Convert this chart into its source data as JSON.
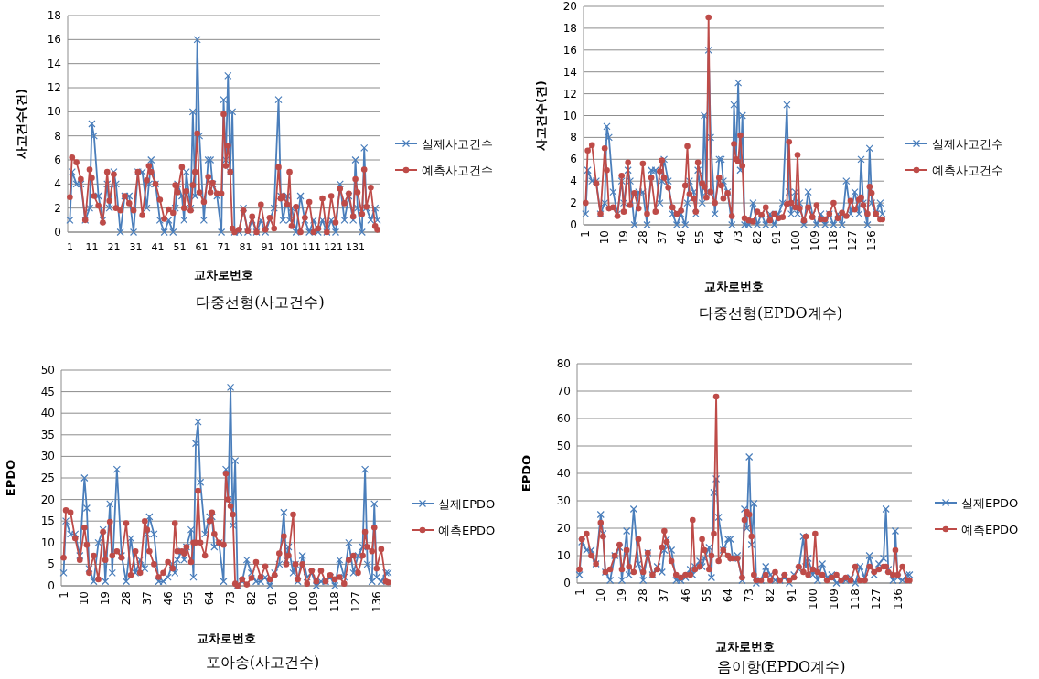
{
  "chart_data": [
    {
      "type": "line",
      "xlabel": "교차로번호",
      "ylabel": "사고건수(건)",
      "annotations": [
        "다중선형(사고건수)"
      ],
      "grid": "y",
      "legend": "right",
      "x": [
        1,
        2,
        4,
        6,
        8,
        10,
        11,
        12,
        14,
        16,
        18,
        19,
        21,
        22,
        24,
        26,
        28,
        30,
        32,
        34,
        36,
        37,
        38,
        40,
        42,
        44,
        46,
        48,
        49,
        50,
        52,
        53,
        54,
        56,
        57,
        58,
        59,
        60,
        62,
        64,
        65,
        66,
        68,
        70,
        71,
        72,
        73,
        74,
        75,
        76,
        78,
        80,
        82,
        84,
        86,
        88,
        90,
        92,
        94,
        96,
        97,
        98,
        100,
        101,
        102,
        104,
        106,
        108,
        110,
        112,
        114,
        116,
        118,
        120,
        122,
        124,
        126,
        128,
        130,
        131,
        132,
        134,
        135,
        136,
        138,
        140,
        141
      ],
      "xlim": [
        0,
        142
      ],
      "xticks": [
        1,
        11,
        21,
        31,
        41,
        51,
        61,
        71,
        81,
        91,
        101,
        111,
        121,
        131
      ],
      "ylim": [
        0,
        18
      ],
      "yticks": [
        0,
        2,
        4,
        6,
        8,
        10,
        12,
        14,
        16,
        18
      ],
      "series": [
        {
          "name": "실제사고건수",
          "color": "#4a7ebb",
          "marker": "cross",
          "values": [
            1,
            5,
            4,
            4,
            1,
            2,
            9,
            8,
            3,
            1,
            4,
            2,
            5,
            4,
            0,
            3,
            3,
            0,
            5,
            5,
            2,
            4,
            6,
            4,
            1,
            0,
            1,
            0,
            2,
            4,
            3,
            1,
            5,
            2,
            10,
            3,
            16,
            8,
            1,
            6,
            6,
            4,
            3,
            0,
            11,
            6,
            13,
            5,
            10,
            0,
            0,
            2,
            0,
            1,
            0,
            1,
            0,
            1,
            2,
            11,
            3,
            1,
            3,
            1,
            2,
            0,
            3,
            1,
            0,
            1,
            0,
            1,
            0,
            1,
            0,
            4,
            1,
            3,
            1,
            6,
            2,
            0,
            7,
            2,
            1,
            2,
            1
          ]
        },
        {
          "name": "예측사고건수",
          "color": "#be4b48",
          "marker": "circle",
          "values": [
            2.9,
            6.2,
            5.8,
            4.4,
            1.0,
            5.2,
            4.5,
            3.0,
            2.2,
            0.8,
            5.0,
            2.6,
            4.8,
            2.0,
            1.8,
            3.0,
            2.4,
            1.8,
            5.0,
            1.4,
            4.3,
            5.5,
            5.0,
            4.0,
            2.7,
            1.1,
            1.9,
            1.6,
            3.9,
            3.3,
            5.4,
            2.0,
            3.4,
            1.8,
            3.9,
            5.0,
            8.2,
            3.3,
            2.5,
            4.6,
            3.3,
            4.1,
            3.2,
            3.2,
            9.8,
            5.5,
            7.2,
            5.0,
            0.3,
            0.0,
            0.2,
            1.8,
            0.1,
            1.3,
            0.0,
            2.3,
            0.2,
            1.2,
            0.3,
            5.4,
            2.8,
            3.0,
            2.3,
            5.0,
            0.5,
            2.1,
            0.0,
            1.2,
            2.5,
            0.0,
            0.3,
            2.8,
            0.0,
            3.0,
            0.8,
            3.6,
            2.4,
            3.2,
            1.3,
            4.4,
            3.3,
            1.5,
            5.2,
            2.1,
            3.7,
            0.5,
            0.2
          ]
        }
      ]
    },
    {
      "type": "line",
      "xlabel": "교차로번호",
      "ylabel": "사고건수(건)",
      "annotations": [
        "다중선형(EPDO계수)"
      ],
      "grid": "y",
      "legend": "right",
      "x": [
        1,
        2,
        4,
        6,
        8,
        10,
        11,
        12,
        14,
        16,
        18,
        19,
        21,
        22,
        24,
        26,
        28,
        30,
        32,
        34,
        36,
        37,
        38,
        40,
        42,
        44,
        46,
        48,
        49,
        50,
        52,
        53,
        54,
        56,
        57,
        58,
        59,
        60,
        62,
        64,
        65,
        66,
        68,
        70,
        71,
        72,
        73,
        74,
        75,
        76,
        78,
        80,
        82,
        84,
        86,
        88,
        90,
        92,
        94,
        96,
        97,
        98,
        100,
        101,
        102,
        104,
        106,
        108,
        110,
        112,
        114,
        116,
        118,
        120,
        122,
        124,
        126,
        128,
        130,
        131,
        132,
        134,
        135,
        136,
        138,
        140,
        141
      ],
      "xlim": [
        0,
        142
      ],
      "xticks": [
        1,
        10,
        19,
        28,
        37,
        46,
        55,
        64,
        73,
        82,
        91,
        100,
        109,
        118,
        127,
        136
      ],
      "ylim": [
        0,
        20
      ],
      "yticks": [
        0,
        2,
        4,
        6,
        8,
        10,
        12,
        14,
        16,
        18,
        20
      ],
      "series": [
        {
          "name": "실제사고건수",
          "color": "#4a7ebb",
          "marker": "cross",
          "values": [
            1,
            5,
            4,
            4,
            1,
            2,
            9,
            8,
            3,
            1,
            4,
            2,
            5,
            4,
            0,
            3,
            3,
            0,
            5,
            5,
            2,
            4,
            6,
            4,
            1,
            0,
            1,
            0,
            2,
            4,
            3,
            1,
            5,
            2,
            10,
            3,
            16,
            8,
            1,
            6,
            6,
            4,
            3,
            0,
            11,
            6,
            13,
            5,
            10,
            0,
            0,
            2,
            0,
            1,
            0,
            1,
            0,
            1,
            2,
            11,
            3,
            1,
            3,
            1,
            2,
            0,
            3,
            1,
            0,
            1,
            0,
            1,
            0,
            1,
            0,
            4,
            1,
            3,
            1,
            6,
            2,
            0,
            7,
            2,
            1,
            2,
            1
          ]
        },
        {
          "name": "예측사고건수",
          "color": "#be4b48",
          "marker": "circle",
          "values": [
            2.0,
            6.8,
            7.3,
            3.8,
            1.0,
            7.0,
            5.0,
            1.5,
            1.6,
            0.8,
            4.5,
            1.2,
            5.7,
            1.8,
            2.9,
            1.5,
            5.6,
            1.0,
            4.3,
            1.2,
            4.9,
            5.9,
            4.3,
            3.4,
            1.6,
            1.0,
            1.3,
            3.6,
            7.2,
            2.8,
            2.4,
            1.2,
            5.7,
            3.8,
            3.5,
            2.5,
            19.0,
            3.0,
            2.0,
            4.3,
            3.6,
            2.4,
            2.9,
            0.8,
            7.4,
            6.0,
            5.8,
            8.2,
            5.4,
            0.6,
            0.4,
            0.3,
            1.2,
            0.9,
            1.6,
            0.4,
            1.0,
            0.6,
            0.7,
            1.9,
            7.6,
            2.0,
            1.6,
            6.4,
            1.5,
            0.4,
            1.6,
            0.7,
            1.8,
            0.5,
            0.5,
            1.0,
            2.0,
            0.6,
            1.1,
            0.8,
            2.2,
            1.4,
            2.3,
            2.5,
            1.8,
            1.0,
            3.5,
            2.9,
            1.0,
            0.5,
            0.5
          ]
        }
      ]
    },
    {
      "type": "line",
      "xlabel": "교차로번호",
      "ylabel": "EPDO",
      "annotations": [
        "포아송(사고건수)"
      ],
      "grid": "y",
      "legend": "right",
      "x": [
        1,
        2,
        4,
        6,
        8,
        10,
        11,
        12,
        14,
        16,
        18,
        19,
        21,
        22,
        24,
        26,
        28,
        30,
        32,
        34,
        36,
        37,
        38,
        40,
        42,
        44,
        46,
        48,
        49,
        50,
        52,
        53,
        54,
        56,
        57,
        58,
        59,
        60,
        62,
        64,
        65,
        66,
        68,
        70,
        71,
        72,
        73,
        74,
        75,
        76,
        78,
        80,
        82,
        84,
        86,
        88,
        90,
        92,
        94,
        96,
        97,
        98,
        100,
        101,
        102,
        104,
        106,
        108,
        110,
        112,
        114,
        116,
        118,
        120,
        122,
        124,
        126,
        128,
        130,
        131,
        132,
        134,
        135,
        136,
        138,
        140,
        141
      ],
      "xlim": [
        0,
        142
      ],
      "xticks": [
        1,
        10,
        19,
        28,
        37,
        46,
        55,
        64,
        73,
        82,
        91,
        100,
        109,
        118,
        127,
        136
      ],
      "ylim": [
        0,
        50
      ],
      "yticks": [
        0,
        5,
        10,
        15,
        20,
        25,
        30,
        35,
        40,
        45,
        50
      ],
      "series": [
        {
          "name": "실제EPDO",
          "color": "#4a7ebb",
          "marker": "cross",
          "values": [
            3,
            15,
            12,
            12,
            7,
            25,
            18,
            4,
            1,
            10,
            13,
            1,
            19,
            3,
            27,
            7,
            1,
            11,
            3,
            6,
            4,
            12,
            16,
            12,
            1,
            1,
            2,
            5,
            3,
            6,
            8,
            6,
            9,
            13,
            2,
            33,
            38,
            24,
            12,
            16,
            16,
            9,
            10,
            1,
            27,
            20,
            46,
            14,
            29,
            0,
            1,
            6,
            3,
            1,
            1,
            2,
            0,
            3,
            5,
            17,
            6,
            9,
            3,
            5,
            1,
            7,
            2,
            3,
            0,
            1,
            1,
            2,
            0,
            6,
            2,
            10,
            3,
            7,
            9,
            27,
            5,
            1,
            19,
            2,
            1,
            3,
            3
          ]
        },
        {
          "name": "예측EPDO",
          "color": "#be4b48",
          "marker": "circle",
          "values": [
            6.5,
            17.5,
            17.0,
            11.0,
            6.0,
            13.5,
            9.5,
            3.0,
            7.0,
            1.5,
            12.5,
            6.0,
            14.8,
            7.0,
            8.0,
            6.5,
            14.5,
            2.5,
            8.0,
            3.0,
            15.0,
            13.0,
            8.0,
            5.0,
            2.0,
            3.0,
            5.5,
            4.0,
            14.5,
            8.0,
            8.0,
            7.5,
            9.0,
            5.5,
            10.0,
            10.0,
            22.0,
            10.0,
            7.0,
            15.0,
            17.0,
            12.0,
            10.0,
            9.5,
            26.0,
            20.0,
            18.5,
            16.5,
            0.5,
            0.0,
            1.5,
            0.3,
            1.8,
            5.5,
            2.0,
            4.5,
            1.5,
            2.5,
            7.5,
            11.5,
            5.0,
            7.0,
            16.5,
            5.0,
            1.5,
            5.0,
            0.5,
            3.5,
            1.0,
            3.5,
            1.0,
            2.5,
            1.5,
            2.0,
            0.5,
            6.0,
            7.0,
            3.0,
            7.0,
            12.5,
            9.0,
            8.0,
            13.5,
            4.0,
            8.5,
            1.0,
            0.8
          ]
        }
      ]
    },
    {
      "type": "line",
      "xlabel": "교차로번호",
      "ylabel": "EPDO",
      "annotations": [
        "음이항(EPDO계수)"
      ],
      "grid": "y",
      "legend": "right",
      "x": [
        1,
        2,
        4,
        6,
        8,
        10,
        11,
        12,
        14,
        16,
        18,
        19,
        21,
        22,
        24,
        26,
        28,
        30,
        32,
        34,
        36,
        37,
        38,
        40,
        42,
        44,
        46,
        48,
        49,
        50,
        52,
        53,
        54,
        56,
        57,
        58,
        59,
        60,
        62,
        64,
        65,
        66,
        68,
        70,
        71,
        72,
        73,
        74,
        75,
        76,
        78,
        80,
        82,
        84,
        86,
        88,
        90,
        92,
        94,
        96,
        97,
        98,
        100,
        101,
        102,
        104,
        106,
        108,
        110,
        112,
        114,
        116,
        118,
        120,
        122,
        124,
        126,
        128,
        130,
        131,
        132,
        134,
        135,
        136,
        138,
        140,
        141
      ],
      "xlim": [
        0,
        142
      ],
      "xticks": [
        1,
        10,
        19,
        28,
        37,
        46,
        55,
        64,
        73,
        82,
        91,
        100,
        109,
        118,
        127,
        136
      ],
      "ylim": [
        0,
        80
      ],
      "yticks": [
        0,
        10,
        20,
        30,
        40,
        50,
        60,
        70,
        80
      ],
      "series": [
        {
          "name": "실제EPDO",
          "color": "#4a7ebb",
          "marker": "cross",
          "values": [
            3,
            15,
            12,
            12,
            7,
            25,
            18,
            4,
            1,
            10,
            13,
            1,
            19,
            3,
            27,
            7,
            1,
            11,
            3,
            6,
            4,
            12,
            16,
            12,
            1,
            1,
            2,
            5,
            3,
            6,
            8,
            6,
            9,
            13,
            2,
            33,
            38,
            24,
            12,
            16,
            16,
            9,
            10,
            1,
            27,
            20,
            46,
            14,
            29,
            0,
            1,
            6,
            3,
            1,
            1,
            2,
            0,
            3,
            5,
            17,
            6,
            9,
            3,
            5,
            1,
            7,
            2,
            3,
            0,
            1,
            1,
            2,
            0,
            6,
            2,
            10,
            3,
            7,
            9,
            27,
            5,
            1,
            19,
            2,
            1,
            3,
            3
          ]
        },
        {
          "name": "예측EPDO",
          "color": "#be4b48",
          "marker": "circle",
          "values": [
            5,
            16,
            18,
            10,
            7,
            22,
            17,
            4,
            5,
            10,
            14,
            5,
            12,
            6,
            4,
            16,
            4,
            11,
            3,
            5,
            13,
            19,
            15,
            8,
            3,
            2,
            3,
            3,
            23,
            5,
            6,
            16,
            12,
            5,
            10,
            18,
            68,
            8,
            12,
            10,
            9,
            9,
            9,
            2,
            23,
            26,
            25,
            17,
            3,
            1,
            1,
            3,
            1,
            4,
            1,
            3,
            1,
            2,
            6,
            4,
            17,
            3,
            5,
            18,
            4,
            3,
            1,
            2,
            3,
            1,
            2,
            1,
            6,
            1,
            1,
            6,
            4,
            5,
            6,
            6,
            4,
            3,
            12,
            3,
            6,
            1,
            1
          ]
        }
      ]
    }
  ]
}
